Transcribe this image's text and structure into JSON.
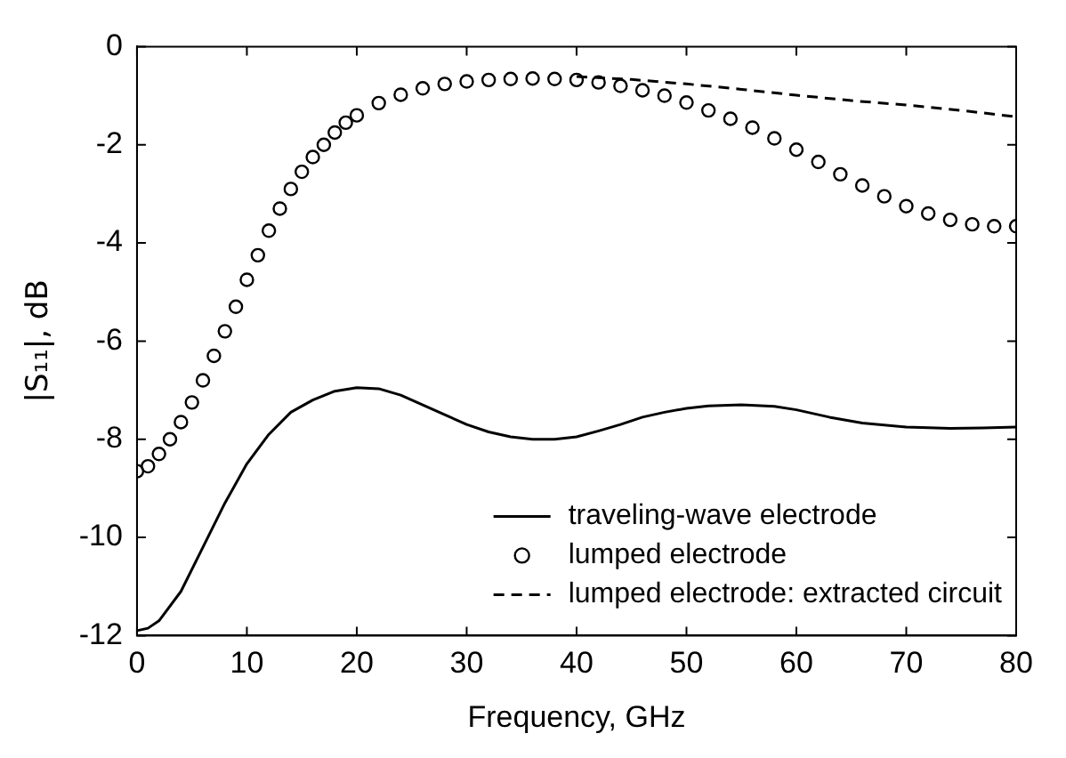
{
  "chart_data": {
    "type": "line",
    "xlabel": "Frequency, GHz",
    "ylabel": "|S₁₁|, dB",
    "xlim": [
      0,
      80
    ],
    "xticks": [
      0,
      10,
      20,
      30,
      40,
      50,
      60,
      70,
      80
    ],
    "ylim": [
      -12,
      0
    ],
    "yticks": [
      -12,
      -10,
      -8,
      -6,
      -4,
      -2,
      0
    ],
    "grid": false,
    "legend": "bottom right",
    "series": [
      {
        "name": "traveling-wave electrode",
        "color": "#000000",
        "line_style": "solid",
        "marker": "none",
        "x": [
          0,
          1,
          2,
          4,
          6,
          8,
          10,
          12,
          14,
          16,
          18,
          20,
          22,
          24,
          26,
          28,
          30,
          32,
          34,
          36,
          38,
          40,
          42,
          44,
          46,
          48,
          50,
          52,
          55,
          58,
          60,
          63,
          66,
          70,
          74,
          77,
          80
        ],
        "values": [
          -11.9,
          -11.85,
          -11.7,
          -11.1,
          -10.2,
          -9.3,
          -8.5,
          -7.9,
          -7.45,
          -7.2,
          -7.02,
          -6.95,
          -6.97,
          -7.1,
          -7.3,
          -7.5,
          -7.7,
          -7.85,
          -7.95,
          -8.0,
          -8.0,
          -7.95,
          -7.83,
          -7.7,
          -7.55,
          -7.45,
          -7.37,
          -7.32,
          -7.3,
          -7.33,
          -7.4,
          -7.55,
          -7.67,
          -7.75,
          -7.78,
          -7.77,
          -7.75
        ]
      },
      {
        "name": "lumped electrode",
        "type": "scatter",
        "color": "#000000",
        "marker": "circle",
        "x": [
          0,
          1,
          2,
          3,
          4,
          5,
          6,
          7,
          8,
          9,
          10,
          11,
          12,
          13,
          14,
          15,
          16,
          17,
          18,
          19,
          20,
          22,
          24,
          26,
          28,
          30,
          32,
          34,
          36,
          38,
          40,
          42,
          44,
          46,
          48,
          50,
          52,
          54,
          56,
          58,
          60,
          62,
          64,
          66,
          68,
          70,
          72,
          74,
          76,
          78,
          80
        ],
        "values": [
          -8.65,
          -8.55,
          -8.3,
          -8.0,
          -7.65,
          -7.25,
          -6.8,
          -6.3,
          -5.8,
          -5.3,
          -4.75,
          -4.25,
          -3.75,
          -3.3,
          -2.9,
          -2.55,
          -2.25,
          -2.0,
          -1.75,
          -1.55,
          -1.4,
          -1.15,
          -0.98,
          -0.85,
          -0.76,
          -0.71,
          -0.68,
          -0.66,
          -0.65,
          -0.66,
          -0.68,
          -0.73,
          -0.8,
          -0.89,
          -1.0,
          -1.14,
          -1.3,
          -1.47,
          -1.65,
          -1.87,
          -2.1,
          -2.35,
          -2.6,
          -2.83,
          -3.05,
          -3.25,
          -3.4,
          -3.53,
          -3.62,
          -3.66,
          -3.66
        ]
      },
      {
        "name": "lumped electrode: extracted circuit",
        "color": "#000000",
        "line_style": "dashed",
        "marker": "none",
        "x": [
          40,
          45,
          50,
          55,
          60,
          65,
          70,
          75,
          80
        ],
        "values": [
          -0.61,
          -0.67,
          -0.76,
          -0.87,
          -0.99,
          -1.1,
          -1.19,
          -1.3,
          -1.43
        ]
      }
    ]
  }
}
